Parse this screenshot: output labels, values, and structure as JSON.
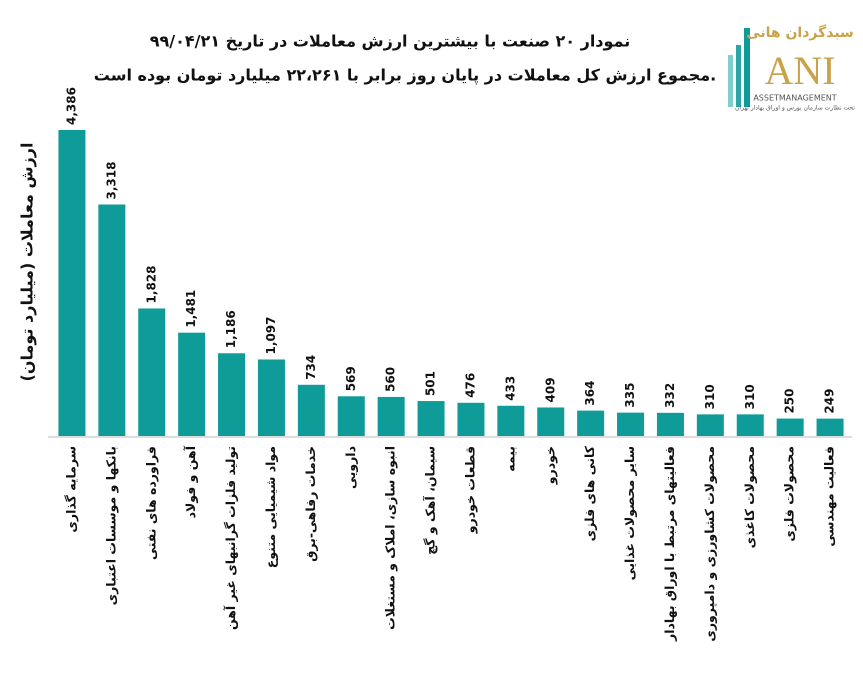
{
  "chart_data": {
    "type": "bar",
    "title": "نمودار ۲۰ صنعت با بیشترین ارزش معاملات در تاریخ ۹۹/۰۴/۲۱",
    "subtitle": "مجموع ارزش کل معاملات در پایان روز برابر با ۲۲،۲۶۱ میلیارد تومان بوده است.",
    "y_label": "ارزش معاملات (میلیارد تومان)",
    "color": "#0f9b98",
    "categories": [
      "سرمایه گذاری",
      "بانکها و موسسات اعتباری",
      "فراورده های نفتی",
      "آهن و فولاد",
      "تولید فلزات گرانبهای غیر آهن",
      "مواد شیمیایی متنوع",
      "خدمات رفاهی-برق",
      "دارویی",
      "انبوه سازی، املاک و مستغلات",
      "سیمان، آهک و گچ",
      "قطعات خودرو",
      "بیمه",
      "خودرو",
      "کانی های فلزی",
      "سایر محصولات غذایی",
      "فعالیتهای مرتبط با اوراق بهادار",
      "محصولات کشاورزی و دامپروری",
      "محصولات کاغذی",
      "محصولات فلزی",
      "فعالیت مهندسی"
    ],
    "values": [
      4386,
      3318,
      1828,
      1481,
      1186,
      1097,
      734,
      569,
      560,
      501,
      476,
      433,
      409,
      364,
      335,
      332,
      310,
      310,
      250,
      249
    ],
    "value_labels": [
      "4,386",
      "3,318",
      "1,828",
      "1,481",
      "1,186",
      "1,097",
      "734",
      "569",
      "560",
      "501",
      "476",
      "433",
      "409",
      "364",
      "335",
      "332",
      "310",
      "310",
      "250",
      "249"
    ]
  },
  "logo": {
    "name": "سبدگردان هانی",
    "mark": "ANI",
    "tagline": "ASSETMANAGEMENT",
    "note": "تحت نظارت سازمان بورس و اوراق بهادار تهران"
  }
}
